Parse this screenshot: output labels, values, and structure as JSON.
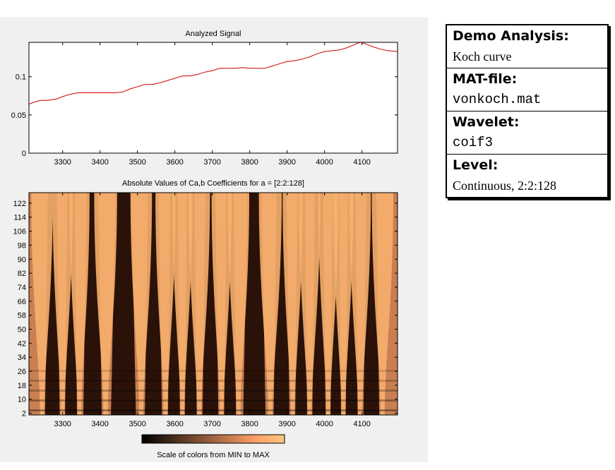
{
  "chart_data": [
    {
      "type": "line",
      "title": "Analyzed Signal",
      "xlabel": "",
      "ylabel": "",
      "xlim": [
        3210,
        4195
      ],
      "ylim": [
        0,
        0.145
      ],
      "xticks": [
        3300,
        3400,
        3500,
        3600,
        3700,
        3800,
        3900,
        4000,
        4100
      ],
      "yticks": [
        0,
        0.05,
        0.1
      ],
      "ytick_labels": [
        "0",
        "0.05",
        "0.1"
      ],
      "series": [
        {
          "color": "#cc0000",
          "x": [
            3210,
            3225,
            3240,
            3260,
            3285,
            3300,
            3320,
            3340,
            3360,
            3380,
            3400,
            3420,
            3440,
            3460,
            3480,
            3500,
            3520,
            3540,
            3560,
            3580,
            3600,
            3620,
            3640,
            3660,
            3680,
            3700,
            3720,
            3740,
            3760,
            3780,
            3800,
            3820,
            3840,
            3860,
            3880,
            3900,
            3920,
            3940,
            3960,
            3980,
            4000,
            4020,
            4040,
            4060,
            4080,
            4095,
            4110,
            4130,
            4150,
            4170,
            4195
          ],
          "y": [
            0.064,
            0.067,
            0.069,
            0.069,
            0.071,
            0.074,
            0.077,
            0.079,
            0.079,
            0.079,
            0.079,
            0.079,
            0.079,
            0.08,
            0.084,
            0.087,
            0.09,
            0.09,
            0.092,
            0.095,
            0.098,
            0.101,
            0.101,
            0.103,
            0.106,
            0.108,
            0.111,
            0.111,
            0.111,
            0.112,
            0.111,
            0.111,
            0.111,
            0.114,
            0.117,
            0.12,
            0.121,
            0.123,
            0.126,
            0.13,
            0.133,
            0.134,
            0.135,
            0.138,
            0.142,
            0.145,
            0.143,
            0.139,
            0.136,
            0.134,
            0.133
          ]
        }
      ]
    },
    {
      "type": "heatmap",
      "title": "Absolute Values of Ca,b Coefficients for a =  [2:2:128]",
      "xlabel": "",
      "ylabel": "",
      "xlim": [
        3210,
        4195
      ],
      "ylim": [
        1,
        128
      ],
      "xticks": [
        3300,
        3400,
        3500,
        3600,
        3700,
        3800,
        3900,
        4000,
        4100
      ],
      "yticks": [
        2,
        10,
        18,
        26,
        34,
        42,
        50,
        58,
        66,
        74,
        82,
        90,
        98,
        106,
        114,
        122
      ],
      "colormap": "copper",
      "colormap_colors": [
        "#000000",
        "#ffc77f"
      ],
      "ridges": [
        {
          "x": 3245,
          "w": 16
        },
        {
          "x": 3300,
          "w": 15
        },
        {
          "x": 3345,
          "w": 15
        },
        {
          "x": 3415,
          "w": 17
        },
        {
          "x": 3510,
          "w": 16
        },
        {
          "x": 3575,
          "w": 15
        },
        {
          "x": 3620,
          "w": 15
        },
        {
          "x": 3665,
          "w": 16
        },
        {
          "x": 3725,
          "w": 15
        },
        {
          "x": 3770,
          "w": 16
        },
        {
          "x": 3855,
          "w": 17
        },
        {
          "x": 3915,
          "w": 15
        },
        {
          "x": 3960,
          "w": 16
        },
        {
          "x": 4010,
          "w": 15
        },
        {
          "x": 4050,
          "w": 15
        },
        {
          "x": 4095,
          "w": 16
        },
        {
          "x": 4155,
          "w": 16
        }
      ]
    },
    {
      "type": "heatmap",
      "title": "",
      "xlabel": "Scale of colors from MIN to MAX",
      "colormap": "copper",
      "colormap_colors": [
        "#000000",
        "#ffc77f"
      ]
    }
  ],
  "info_panel": {
    "analysis_heading": "Demo Analysis:",
    "analysis_value": "Koch curve",
    "matfile_heading": "MAT-file:",
    "matfile_value": "vonkoch.mat",
    "wavelet_heading": "Wavelet:",
    "wavelet_value": "coif3",
    "level_heading": "Level:",
    "level_value": "Continuous, 2:2:128"
  }
}
